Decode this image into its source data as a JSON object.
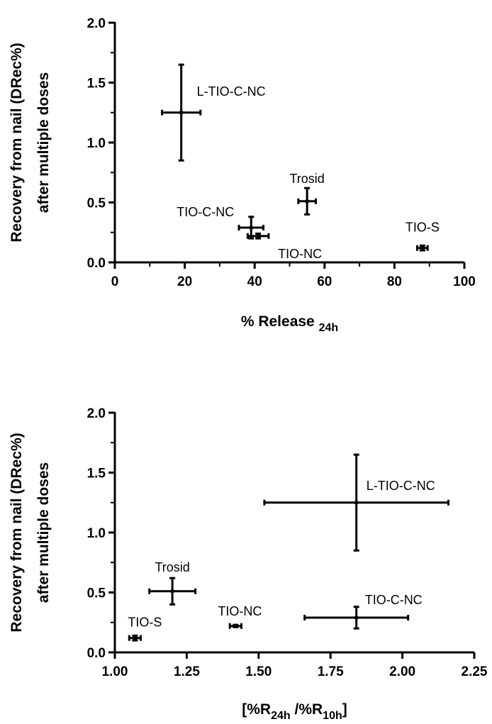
{
  "chart_data": [
    {
      "type": "scatter",
      "xlabel": "% Release",
      "xlabel_sub": "24h",
      "ylabel_line1": "Recovery from nail (DRec%)",
      "ylabel_line2": "after multiple doses",
      "xlim": [
        0,
        100
      ],
      "ylim": [
        0,
        2.0
      ],
      "x_ticks": [
        0,
        20,
        40,
        60,
        80,
        100
      ],
      "y_ticks": [
        0.0,
        0.5,
        1.0,
        1.5,
        2.0
      ],
      "x_tick_labels": [
        "0",
        "20",
        "40",
        "60",
        "80",
        "100"
      ],
      "y_tick_labels": [
        "0.0",
        "0.5",
        "1.0",
        "1.5",
        "2.0"
      ],
      "x_minor_ticks": [
        10,
        30,
        50,
        70,
        90
      ],
      "y_minor_ticks": [
        0.25,
        0.75,
        1.25,
        1.75
      ],
      "grid": false,
      "points": [
        {
          "label": "L-TIO-C-NC",
          "x": 19,
          "y": 1.25,
          "x_err": 5.5,
          "y_err": 0.4
        },
        {
          "label": "Trosid",
          "x": 55,
          "y": 0.51,
          "x_err": 2.5,
          "y_err": 0.11
        },
        {
          "label": "TIO-C-NC",
          "x": 39,
          "y": 0.29,
          "x_err": 3.5,
          "y_err": 0.09
        },
        {
          "label": "TIO-NC",
          "x": 41,
          "y": 0.22,
          "x_err": 3.0,
          "y_err": 0.02
        },
        {
          "label": "TIO-S",
          "x": 88,
          "y": 0.12,
          "x_err": 1.5,
          "y_err": 0.02
        }
      ]
    },
    {
      "type": "scatter",
      "xlabel": "[%R",
      "xlabel_sub1": "24h",
      "xlabel_mid": " /%R",
      "xlabel_sub2": "10h",
      "xlabel_end": "]",
      "ylabel_line1": "Recovery from nail (DRec%)",
      "ylabel_line2": "after multiple doses",
      "xlim": [
        1.0,
        2.25
      ],
      "ylim": [
        0,
        2.0
      ],
      "x_ticks": [
        1.0,
        1.25,
        1.5,
        1.75,
        2.0,
        2.25
      ],
      "y_ticks": [
        0.0,
        0.5,
        1.0,
        1.5,
        2.0
      ],
      "x_tick_labels": [
        "1.00",
        "1.25",
        "1.50",
        "1.75",
        "2.00",
        "2.25"
      ],
      "y_tick_labels": [
        "0.0",
        "0.5",
        "1.0",
        "1.5",
        "2.0"
      ],
      "y_minor_ticks": [
        0.25,
        0.75,
        1.25,
        1.75
      ],
      "grid": false,
      "points": [
        {
          "label": "L-TIO-C-NC",
          "x": 1.84,
          "y": 1.25,
          "x_err": 0.32,
          "y_err": 0.4
        },
        {
          "label": "Trosid",
          "x": 1.2,
          "y": 0.51,
          "x_err": 0.08,
          "y_err": 0.11
        },
        {
          "label": "TIO-C-NC",
          "x": 1.84,
          "y": 0.29,
          "x_err": 0.18,
          "y_err": 0.09
        },
        {
          "label": "TIO-NC",
          "x": 1.42,
          "y": 0.22,
          "x_err": 0.02,
          "y_err": 0.01
        },
        {
          "label": "TIO-S",
          "x": 1.07,
          "y": 0.12,
          "x_err": 0.02,
          "y_err": 0.02
        }
      ]
    }
  ]
}
